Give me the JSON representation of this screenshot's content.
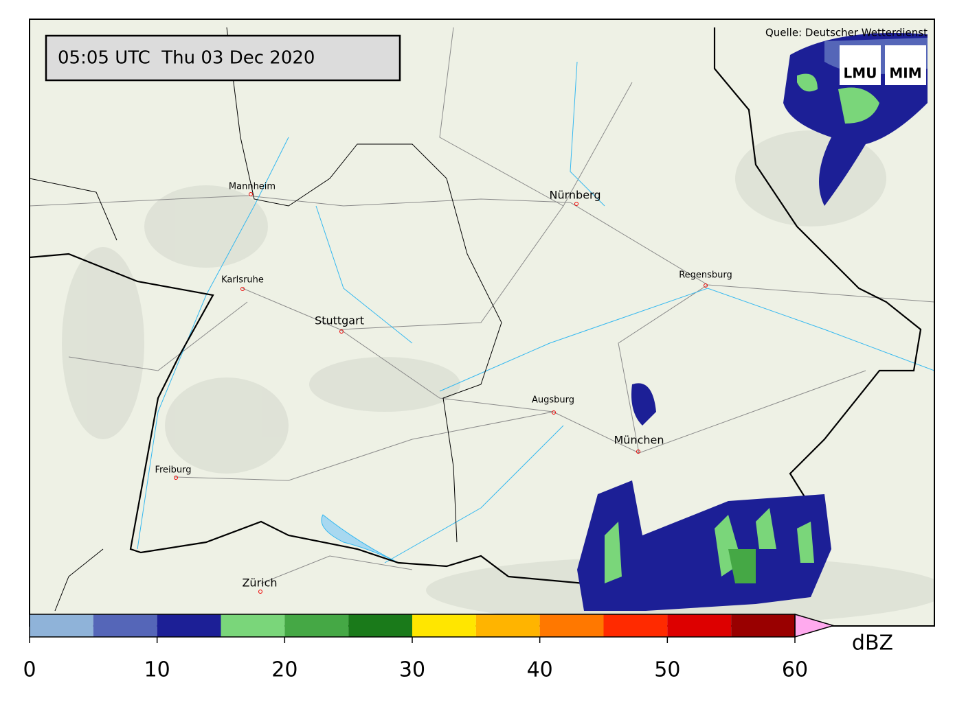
{
  "timestamp": "05:05 UTC  Thu 03 Dec 2020",
  "source": "Quelle: Deutscher Wetterdienst",
  "logo": [
    "LMU",
    "MIM"
  ],
  "cities": [
    "Mannheim",
    "Nürnberg",
    "Karlsruhe",
    "Stuttgart",
    "Regensburg",
    "Augsburg",
    "München",
    "Freiburg",
    "Zürich"
  ],
  "colorbar": {
    "label": "dBZ",
    "bounds": [
      0,
      5,
      10,
      15,
      20,
      25,
      30,
      35,
      40,
      45,
      50,
      55,
      60
    ],
    "colors": [
      "#8fb3d9",
      "#5566b8",
      "#1c1f96",
      "#7ad67a",
      "#45a845",
      "#1a7a1a",
      "#ffe600",
      "#ffb400",
      "#ff7800",
      "#ff2a00",
      "#dd0000",
      "#990000"
    ],
    "extend_color": "#ffaaee",
    "ticks": [
      0,
      10,
      20,
      30,
      40,
      50,
      60
    ]
  }
}
